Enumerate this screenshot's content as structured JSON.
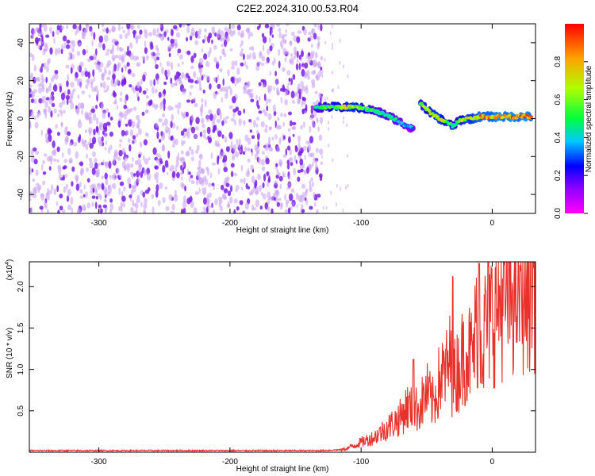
{
  "figure_title": "C2E2.2024.310.00.53.R04",
  "chart_data": [
    {
      "type": "heatmap",
      "xlabel": "Height of straight line (km)",
      "ylabel": "Frequency (Hz)",
      "xlim": [
        -353,
        33
      ],
      "ylim": [
        -50,
        50
      ],
      "x_ticks": [
        -300,
        -200,
        -100,
        0
      ],
      "y_ticks": [
        -40,
        -20,
        0,
        20,
        40
      ],
      "colorbar": {
        "label": "Normalized spectral amplitude",
        "range": [
          0,
          1
        ],
        "ticks": [
          0.0,
          0.2,
          0.4,
          0.6,
          0.8
        ],
        "tick_labels": [
          "0.0",
          "0.2",
          "0.4",
          "0.6",
          "0.8"
        ]
      },
      "noise_region": {
        "x_range": [
          -353,
          -130
        ],
        "f_range": [
          -50,
          50
        ],
        "amplitude": "low (0.05-0.2)"
      },
      "signal_trace": {
        "x": [
          -135,
          -125,
          -115,
          -105,
          -95,
          -85,
          -75,
          -65,
          -60,
          -55,
          -50,
          -45,
          -40,
          -35,
          -30,
          -25,
          -20,
          -15,
          -10,
          -5,
          0,
          5,
          10,
          15,
          20,
          25,
          30
        ],
        "frequency": [
          6,
          6,
          6,
          6,
          5,
          3,
          0,
          -4,
          -5,
          8,
          5,
          2,
          0,
          -2,
          -4,
          -1,
          0,
          0,
          1,
          1,
          1,
          1,
          1,
          1,
          1,
          1,
          1
        ],
        "amplitude": [
          0.5,
          0.6,
          0.7,
          0.8,
          0.6,
          0.5,
          0.5,
          0.4,
          0.4,
          0.6,
          0.7,
          0.8,
          0.8,
          0.6,
          0.6,
          0.7,
          0.8,
          0.8,
          0.9,
          0.9,
          0.9,
          1.0,
          0.9,
          1.0,
          0.9,
          1.0,
          0.9
        ]
      }
    },
    {
      "type": "line",
      "xlabel": "Height of straight line (km)",
      "ylabel": "SNR (10 * v/v)",
      "scale_label": "(x10",
      "scale_exponent": "4",
      "scale_label_close": ")",
      "xlim": [
        -353,
        33
      ],
      "ylim": [
        0,
        2.3
      ],
      "x_ticks": [
        -300,
        -200,
        -100,
        0
      ],
      "y_ticks": [
        0.5,
        1.0,
        1.5,
        2.0
      ],
      "y_tick_labels": [
        "0.5",
        "1.0",
        "1.5",
        "2.0"
      ],
      "color": "#e8312a",
      "series": [
        {
          "x": [
            -353,
            -300,
            -250,
            -200,
            -150,
            -130,
            -115,
            -110,
            -100,
            -90,
            -80,
            -70,
            -65,
            -60,
            -55,
            -50,
            -45,
            -40,
            -35,
            -32,
            -30,
            -25,
            -20,
            -15,
            -12,
            -10,
            -7,
            -5,
            0,
            5,
            10,
            15,
            20,
            25,
            30,
            33
          ],
          "y": [
            0.02,
            0.02,
            0.02,
            0.02,
            0.02,
            0.02,
            0.03,
            0.05,
            0.12,
            0.18,
            0.3,
            0.42,
            0.55,
            0.5,
            0.55,
            0.72,
            0.58,
            0.88,
            0.98,
            1.12,
            0.85,
            1.05,
            1.25,
            1.15,
            1.52,
            1.7,
            1.3,
            1.55,
            1.65,
            1.82,
            1.9,
            1.95,
            2.0,
            2.05,
            2.08,
            2.1
          ],
          "peaks": [
            {
              "x": -60,
              "y": 1.12
            },
            {
              "x": -30,
              "y": 2.12
            },
            {
              "x": -10,
              "y": 2.28
            },
            {
              "x": -5,
              "y": 1.95
            }
          ]
        }
      ]
    }
  ]
}
